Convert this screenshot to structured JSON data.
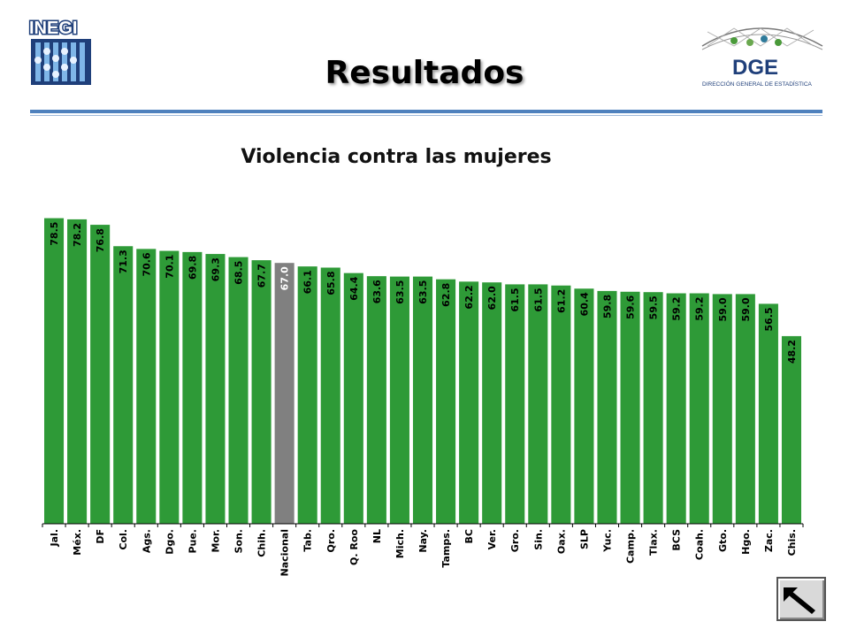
{
  "header": {
    "title": "Resultados",
    "logo_left_text": "INEGI",
    "logo_right_text": "DGE",
    "logo_right_subtext": "DIRECCIÓN GENERAL DE ESTADÍSTICA"
  },
  "colors": {
    "bar": "#2e9a37",
    "highlight_bar": "#808080",
    "rule": "#4f81bd"
  },
  "chart_data": {
    "type": "bar",
    "title": "Violencia contra las mujeres",
    "xlabel": "",
    "ylabel": "",
    "ylim": [
      0,
      80
    ],
    "grid": false,
    "highlight": "Nacional",
    "categories": [
      "Jal.",
      "Méx.",
      "DF",
      "Col.",
      "Ags.",
      "Dgo.",
      "Pue.",
      "Mor.",
      "Son.",
      "Chih.",
      "Nacional",
      "Tab.",
      "Qro.",
      "Q. Roo",
      "NL",
      "Mich.",
      "Nay.",
      "Tamps.",
      "BC",
      "Ver.",
      "Gro.",
      "Sin.",
      "Oax.",
      "SLP",
      "Yuc.",
      "Camp.",
      "Tlax.",
      "BCS",
      "Coah.",
      "Gto.",
      "Hgo.",
      "Zac.",
      "Chis."
    ],
    "values": [
      78.5,
      78.2,
      76.8,
      71.3,
      70.6,
      70.1,
      69.8,
      69.3,
      68.5,
      67.7,
      67.0,
      66.1,
      65.8,
      64.4,
      63.6,
      63.5,
      63.5,
      62.8,
      62.2,
      62.0,
      61.5,
      61.5,
      61.2,
      60.4,
      59.8,
      59.6,
      59.5,
      59.2,
      59.2,
      59.0,
      59.0,
      56.5,
      48.2
    ],
    "value_labels": [
      "78.5",
      "78.2",
      "76.8",
      "71.3",
      "70.6",
      "70.1",
      "69.8",
      "69.3",
      "68.5",
      "67.7",
      "67.0",
      "66.1",
      "65.8",
      "64.4",
      "63.6",
      "63.5",
      "63.5",
      "62.8",
      "62.2",
      "62.0",
      "61.5",
      "61.5",
      "61.2",
      "60.4",
      "59.8",
      "59.6",
      "59.5",
      "59.2",
      "59.2",
      "59.0",
      "59.0",
      "56.5",
      "48.2"
    ]
  }
}
